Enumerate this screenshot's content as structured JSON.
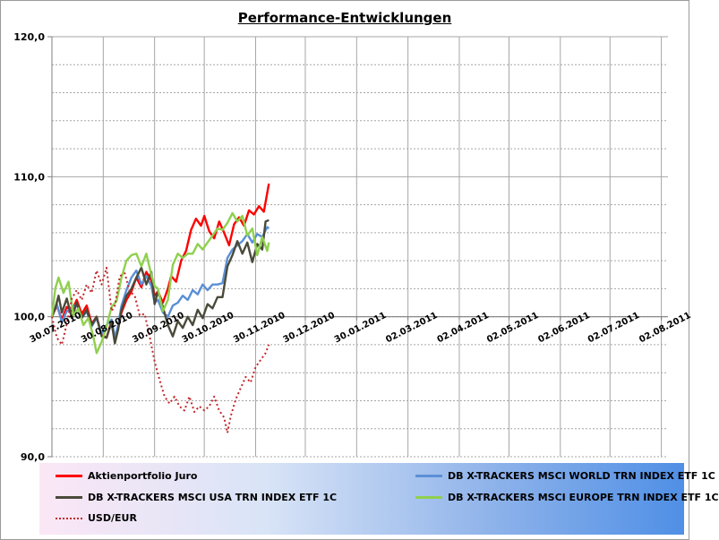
{
  "chart_data": {
    "type": "line",
    "title": "Performance-Entwicklungen",
    "xlabel": "",
    "ylabel": "",
    "ylim": [
      90,
      120
    ],
    "yticks": [
      "90,0",
      "100,0",
      "110,0",
      "120,0"
    ],
    "xticks": [
      "30.07.2010",
      "30.08.2010",
      "30.09.2010",
      "30.10.2010",
      "30.11.2010",
      "30.12.2010",
      "30.01.2011",
      "02.03.2011",
      "02.04.2011",
      "02.05.2011",
      "02.06.2011",
      "02.07.2011",
      "02.08.2011"
    ],
    "xtick_days": [
      0,
      31,
      62,
      92,
      123,
      153,
      184,
      215,
      246,
      276,
      307,
      337,
      368
    ],
    "legend_position": "bottom",
    "grid": true,
    "series": [
      {
        "name": "Aktienportfolio Juro",
        "color": "#ff0000",
        "dash": "solid",
        "points": [
          [
            0,
            100.0
          ],
          [
            3,
            100.8
          ],
          [
            6,
            99.8
          ],
          [
            9,
            100.7
          ],
          [
            12,
            100.4
          ],
          [
            15,
            101.2
          ],
          [
            18,
            100.2
          ],
          [
            21,
            100.8
          ],
          [
            24,
            99.5
          ],
          [
            27,
            100.0
          ],
          [
            30,
            98.7
          ],
          [
            33,
            98.5
          ],
          [
            36,
            99.7
          ],
          [
            38,
            98.2
          ],
          [
            40,
            99.2
          ],
          [
            42,
            100.3
          ],
          [
            45,
            101.2
          ],
          [
            48,
            101.8
          ],
          [
            51,
            102.8
          ],
          [
            54,
            102.1
          ],
          [
            57,
            103.2
          ],
          [
            60,
            102.6
          ],
          [
            62,
            101.5
          ],
          [
            64,
            101.8
          ],
          [
            67,
            101.0
          ],
          [
            70,
            102.0
          ],
          [
            72,
            102.9
          ],
          [
            75,
            102.5
          ],
          [
            78,
            104.0
          ],
          [
            81,
            104.7
          ],
          [
            84,
            106.2
          ],
          [
            87,
            107.0
          ],
          [
            90,
            106.5
          ],
          [
            92,
            107.2
          ],
          [
            95,
            106.1
          ],
          [
            98,
            105.6
          ],
          [
            101,
            106.8
          ],
          [
            104,
            106.0
          ],
          [
            107,
            105.1
          ],
          [
            110,
            106.6
          ],
          [
            113,
            107.1
          ],
          [
            116,
            106.5
          ],
          [
            119,
            107.6
          ],
          [
            122,
            107.3
          ],
          [
            125,
            107.9
          ],
          [
            128,
            107.5
          ],
          [
            131,
            109.5
          ]
        ]
      },
      {
        "name": "DB X-TRACKERS  MSCI WORLD TRN INDEX ETF 1C",
        "color": "#5b8fd6",
        "dash": "solid",
        "points": [
          [
            0,
            100.0
          ],
          [
            3,
            100.9
          ],
          [
            6,
            99.6
          ],
          [
            9,
            100.4
          ],
          [
            12,
            100.6
          ],
          [
            15,
            100.9
          ],
          [
            18,
            99.9
          ],
          [
            21,
            100.4
          ],
          [
            24,
            99.3
          ],
          [
            27,
            99.9
          ],
          [
            30,
            98.8
          ],
          [
            33,
            99.4
          ],
          [
            36,
            99.8
          ],
          [
            38,
            98.5
          ],
          [
            40,
            99.4
          ],
          [
            42,
            100.8
          ],
          [
            45,
            101.9
          ],
          [
            48,
            102.8
          ],
          [
            51,
            103.3
          ],
          [
            54,
            102.3
          ],
          [
            57,
            102.9
          ],
          [
            60,
            102.2
          ],
          [
            62,
            101.0
          ],
          [
            64,
            101.2
          ],
          [
            67,
            100.3
          ],
          [
            70,
            100.0
          ],
          [
            73,
            100.8
          ],
          [
            76,
            101.0
          ],
          [
            79,
            101.5
          ],
          [
            82,
            101.2
          ],
          [
            85,
            101.9
          ],
          [
            88,
            101.6
          ],
          [
            91,
            102.3
          ],
          [
            94,
            101.9
          ],
          [
            97,
            102.3
          ],
          [
            100,
            102.3
          ],
          [
            103,
            102.4
          ],
          [
            106,
            104.2
          ],
          [
            109,
            104.8
          ],
          [
            112,
            105.1
          ],
          [
            115,
            105.4
          ],
          [
            118,
            105.9
          ],
          [
            121,
            105.3
          ],
          [
            124,
            105.9
          ],
          [
            127,
            105.7
          ],
          [
            130,
            106.4
          ],
          [
            131,
            106.3
          ]
        ]
      },
      {
        "name": "DB X-TRACKERS  MSCI USA TRN INDEX ETF 1C",
        "color": "#4a4a3a",
        "dash": "solid",
        "points": [
          [
            0,
            100.0
          ],
          [
            2,
            100.6
          ],
          [
            4,
            101.5
          ],
          [
            6,
            100.3
          ],
          [
            9,
            101.3
          ],
          [
            12,
            99.9
          ],
          [
            15,
            101.0
          ],
          [
            18,
            99.9
          ],
          [
            21,
            100.5
          ],
          [
            24,
            99.4
          ],
          [
            27,
            100.0
          ],
          [
            30,
            98.6
          ],
          [
            33,
            98.5
          ],
          [
            36,
            99.6
          ],
          [
            38,
            98.1
          ],
          [
            40,
            99.1
          ],
          [
            42,
            100.5
          ],
          [
            45,
            101.5
          ],
          [
            48,
            102.0
          ],
          [
            51,
            102.8
          ],
          [
            54,
            103.5
          ],
          [
            57,
            102.3
          ],
          [
            60,
            103.2
          ],
          [
            62,
            100.9
          ],
          [
            64,
            101.8
          ],
          [
            67,
            100.7
          ],
          [
            70,
            99.4
          ],
          [
            73,
            98.6
          ],
          [
            76,
            99.7
          ],
          [
            79,
            99.2
          ],
          [
            82,
            100.0
          ],
          [
            85,
            99.4
          ],
          [
            88,
            100.5
          ],
          [
            91,
            99.9
          ],
          [
            94,
            100.9
          ],
          [
            97,
            100.6
          ],
          [
            100,
            101.4
          ],
          [
            103,
            101.4
          ],
          [
            106,
            103.6
          ],
          [
            109,
            104.4
          ],
          [
            112,
            105.4
          ],
          [
            115,
            104.5
          ],
          [
            118,
            105.3
          ],
          [
            121,
            103.9
          ],
          [
            124,
            105.2
          ],
          [
            127,
            104.8
          ],
          [
            129,
            106.8
          ],
          [
            131,
            106.9
          ]
        ]
      },
      {
        "name": "DB X-TRACKERS  MSCI EUROPE TRN INDEX ETF 1C",
        "color": "#8fd04e",
        "dash": "solid",
        "points": [
          [
            0,
            100.0
          ],
          [
            2,
            102.0
          ],
          [
            4,
            102.8
          ],
          [
            7,
            101.7
          ],
          [
            10,
            102.5
          ],
          [
            13,
            100.1
          ],
          [
            16,
            100.6
          ],
          [
            19,
            99.4
          ],
          [
            22,
            99.9
          ],
          [
            25,
            98.6
          ],
          [
            27,
            97.4
          ],
          [
            30,
            98.2
          ],
          [
            33,
            99.3
          ],
          [
            36,
            100.7
          ],
          [
            39,
            101.1
          ],
          [
            42,
            102.8
          ],
          [
            45,
            104.0
          ],
          [
            48,
            104.4
          ],
          [
            51,
            104.5
          ],
          [
            54,
            103.6
          ],
          [
            57,
            104.5
          ],
          [
            60,
            103.0
          ],
          [
            62,
            102.2
          ],
          [
            64,
            102.0
          ],
          [
            67,
            100.4
          ],
          [
            70,
            101.2
          ],
          [
            73,
            103.7
          ],
          [
            76,
            104.5
          ],
          [
            79,
            104.2
          ],
          [
            82,
            104.5
          ],
          [
            85,
            104.5
          ],
          [
            88,
            105.2
          ],
          [
            91,
            104.8
          ],
          [
            94,
            105.3
          ],
          [
            97,
            105.8
          ],
          [
            100,
            106.3
          ],
          [
            103,
            106.2
          ],
          [
            106,
            106.7
          ],
          [
            109,
            107.4
          ],
          [
            112,
            106.8
          ],
          [
            115,
            107.2
          ],
          [
            118,
            105.8
          ],
          [
            121,
            106.3
          ],
          [
            124,
            104.4
          ],
          [
            127,
            105.7
          ],
          [
            130,
            104.7
          ],
          [
            131,
            105.3
          ]
        ]
      },
      {
        "name": "USD/EUR",
        "color": "#c0282c",
        "dash": "dotted",
        "points": [
          [
            0,
            100.0
          ],
          [
            3,
            98.5
          ],
          [
            6,
            98.0
          ],
          [
            9,
            99.5
          ],
          [
            12,
            101.3
          ],
          [
            15,
            101.9
          ],
          [
            18,
            101.2
          ],
          [
            21,
            102.3
          ],
          [
            24,
            101.7
          ],
          [
            27,
            103.3
          ],
          [
            30,
            102.3
          ],
          [
            33,
            103.5
          ],
          [
            36,
            100.4
          ],
          [
            38,
            100.8
          ],
          [
            41,
            102.9
          ],
          [
            44,
            103.1
          ],
          [
            47,
            101.8
          ],
          [
            50,
            101.5
          ],
          [
            53,
            100.1
          ],
          [
            56,
            100.2
          ],
          [
            59,
            98.6
          ],
          [
            62,
            96.8
          ],
          [
            65,
            95.5
          ],
          [
            68,
            94.3
          ],
          [
            71,
            93.8
          ],
          [
            74,
            94.3
          ],
          [
            77,
            93.6
          ],
          [
            80,
            93.3
          ],
          [
            83,
            94.3
          ],
          [
            86,
            93.2
          ],
          [
            89,
            93.6
          ],
          [
            92,
            93.3
          ],
          [
            95,
            93.6
          ],
          [
            98,
            94.3
          ],
          [
            101,
            93.3
          ],
          [
            104,
            92.8
          ],
          [
            106,
            91.7
          ],
          [
            108,
            92.9
          ],
          [
            111,
            94.1
          ],
          [
            114,
            94.9
          ],
          [
            117,
            95.7
          ],
          [
            120,
            95.3
          ],
          [
            123,
            96.4
          ],
          [
            126,
            96.9
          ],
          [
            129,
            97.4
          ],
          [
            131,
            98.0
          ]
        ]
      }
    ]
  }
}
